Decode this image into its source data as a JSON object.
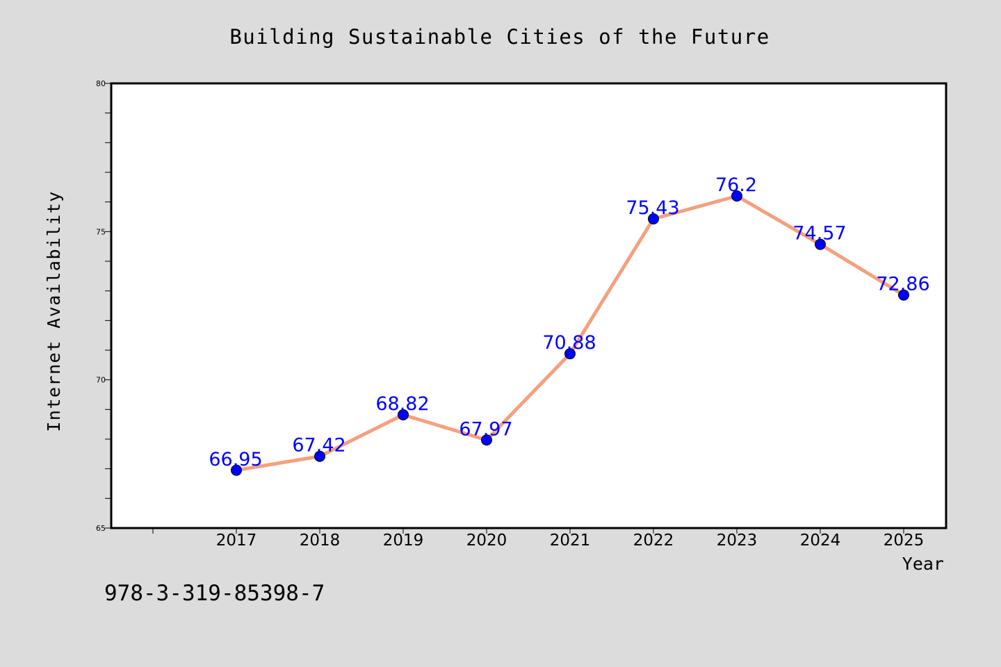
{
  "page": {
    "background": "#dcdcdc",
    "footer_code": "978-3-319-85398-7"
  },
  "chart_data": {
    "type": "line",
    "title": "Building Sustainable Cities of the Future",
    "xlabel": "Year",
    "ylabel": "Internet Availability",
    "categories": [
      "2017",
      "2018",
      "2019",
      "2020",
      "2021",
      "2022",
      "2023",
      "2024",
      "2025"
    ],
    "series": [
      {
        "values": [
          66.95,
          67.42,
          68.82,
          67.97,
          70.88,
          75.43,
          76.2,
          74.57,
          72.86
        ],
        "data_labels": [
          "66.95",
          "67.42",
          "68.82",
          "67.97",
          "70.88",
          "75.43",
          "76.2",
          "74.57",
          "72.86"
        ],
        "line_color": "#f4a07f",
        "marker_color": "#0000ff",
        "label_color": "#0000ff"
      }
    ],
    "yticks": [
      {
        "value": 65,
        "label": "65"
      },
      {
        "value": 70,
        "label": "70"
      },
      {
        "value": 75,
        "label": "75"
      },
      {
        "value": 80,
        "label": "80"
      }
    ],
    "ylim": [
      65,
      80
    ],
    "grid": false,
    "legend": "none",
    "plot_background": "#ffffff"
  }
}
